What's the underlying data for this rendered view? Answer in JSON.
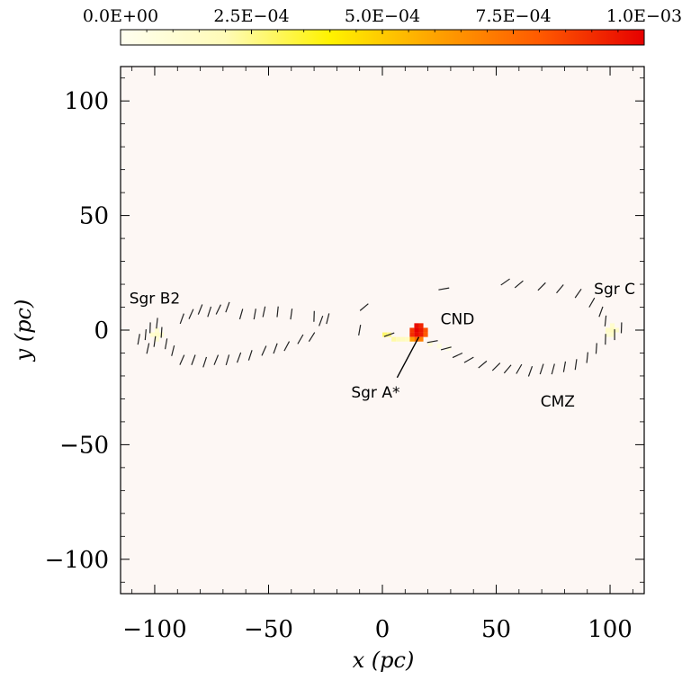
{
  "chart_data": {
    "type": "heatmap",
    "title": "",
    "xlabel": "x (pc)",
    "ylabel": "y (pc)",
    "xlim": [
      -115,
      115
    ],
    "ylim": [
      -115,
      115
    ],
    "x_ticks": [
      -100,
      -50,
      0,
      50,
      100
    ],
    "y_ticks": [
      100,
      50,
      0,
      -50,
      -100
    ],
    "x_tick_labels": [
      "−100",
      "−50",
      "0",
      "50",
      "100"
    ],
    "y_tick_labels": [
      "100",
      "50",
      "0",
      "−50",
      "−100"
    ],
    "grid": false,
    "background_color": "#fdf7f4",
    "colorbar": {
      "orientation": "horizontal",
      "placement": "top",
      "range": [
        0,
        0.001
      ],
      "ticks": [
        0,
        0.00025,
        0.0005,
        0.00075,
        0.001
      ],
      "tick_labels": [
        "0.0E+00",
        "2.5E−04",
        "5.0E−04",
        "7.5E−04",
        "1.0E−03"
      ],
      "colors": [
        "#fffff0",
        "#fffbb8",
        "#fff200",
        "#ffa300",
        "#ff5a00",
        "#e60000"
      ]
    },
    "annotations": [
      {
        "text": "Sgr B2",
        "x": -100,
        "y": 14
      },
      {
        "text": "CND",
        "x": 33,
        "y": 5
      },
      {
        "text": "Sgr C",
        "x": 102,
        "y": 18
      },
      {
        "text": "Sgr A*",
        "x": -3,
        "y": -27,
        "arrow_to": [
          16,
          -3
        ]
      },
      {
        "text": "CMZ",
        "x": 77,
        "y": -31
      }
    ],
    "cells": [
      {
        "x": 15,
        "y": 2,
        "v": 0.00097
      },
      {
        "x": 17,
        "y": 2,
        "v": 0.00092
      },
      {
        "x": 13,
        "y": 0,
        "v": 0.00088
      },
      {
        "x": 15,
        "y": 0,
        "v": 0.001
      },
      {
        "x": 17,
        "y": 0,
        "v": 0.00095
      },
      {
        "x": 19,
        "y": 0,
        "v": 0.00082
      },
      {
        "x": 13,
        "y": -2,
        "v": 0.0009
      },
      {
        "x": 15,
        "y": -2,
        "v": 0.00098
      },
      {
        "x": 17,
        "y": -2,
        "v": 0.00094
      },
      {
        "x": 19,
        "y": -2,
        "v": 0.0008
      },
      {
        "x": 15,
        "y": -4,
        "v": 0.00075
      },
      {
        "x": 17,
        "y": -4,
        "v": 0.0007
      },
      {
        "x": 13,
        "y": -4,
        "v": 0.00062
      },
      {
        "x": 1,
        "y": -2,
        "v": 0.00028
      },
      {
        "x": 3,
        "y": -2,
        "v": 0.00025
      },
      {
        "x": 5,
        "y": -4,
        "v": 0.00022
      },
      {
        "x": 7,
        "y": -4,
        "v": 0.0002
      },
      {
        "x": 9,
        "y": -4,
        "v": 0.00018
      },
      {
        "x": 11,
        "y": -4,
        "v": 0.00016
      },
      {
        "x": 21,
        "y": -6,
        "v": 9e-05
      },
      {
        "x": 25,
        "y": -7,
        "v": 7e-05
      },
      {
        "x": 29,
        "y": -8,
        "v": 5e-05
      },
      {
        "x": -101,
        "y": -2,
        "v": 0.00012
      },
      {
        "x": -99,
        "y": -2,
        "v": 0.00014
      },
      {
        "x": -97,
        "y": -2,
        "v": 0.00011
      },
      {
        "x": -99,
        "y": 0,
        "v": 0.0001
      },
      {
        "x": -99,
        "y": -4,
        "v": 0.0001
      },
      {
        "x": 99,
        "y": 0,
        "v": 0.00014
      },
      {
        "x": 101,
        "y": 0,
        "v": 0.00017
      },
      {
        "x": 103,
        "y": 0,
        "v": 0.00013
      },
      {
        "x": 101,
        "y": 2,
        "v": 0.00012
      },
      {
        "x": 101,
        "y": -2,
        "v": 0.00012
      },
      {
        "x": 99,
        "y": -2,
        "v": 0.0001
      }
    ],
    "polarization_vectors": [
      {
        "x": -107,
        "y": -4,
        "angle": 80
      },
      {
        "x": -104,
        "y": -2,
        "angle": 85
      },
      {
        "x": -102,
        "y": 1,
        "angle": 88
      },
      {
        "x": -100,
        "y": -5,
        "angle": 82
      },
      {
        "x": -97,
        "y": -1,
        "angle": 86
      },
      {
        "x": -95,
        "y": -6,
        "angle": 80
      },
      {
        "x": -103,
        "y": -8,
        "angle": 78
      },
      {
        "x": -99,
        "y": 3,
        "angle": 84
      },
      {
        "x": -92,
        "y": -9,
        "angle": 76
      },
      {
        "x": -88,
        "y": 5,
        "angle": 70
      },
      {
        "x": -84,
        "y": 7,
        "angle": 66
      },
      {
        "x": -80,
        "y": 9,
        "angle": 68
      },
      {
        "x": -76,
        "y": 8,
        "angle": 72
      },
      {
        "x": -72,
        "y": 9,
        "angle": 64
      },
      {
        "x": -68,
        "y": 10,
        "angle": 70
      },
      {
        "x": -62,
        "y": 7,
        "angle": 74
      },
      {
        "x": -56,
        "y": 7,
        "angle": 80
      },
      {
        "x": -52,
        "y": 8,
        "angle": 78
      },
      {
        "x": -46,
        "y": 8,
        "angle": 84
      },
      {
        "x": -40,
        "y": 7,
        "angle": 82
      },
      {
        "x": -30,
        "y": 6,
        "angle": 88
      },
      {
        "x": -27,
        "y": 4,
        "angle": 70
      },
      {
        "x": -24,
        "y": 5,
        "angle": 76
      },
      {
        "x": -88,
        "y": -13,
        "angle": 66
      },
      {
        "x": -83,
        "y": -13,
        "angle": 70
      },
      {
        "x": -78,
        "y": -14,
        "angle": 72
      },
      {
        "x": -73,
        "y": -13,
        "angle": 68
      },
      {
        "x": -68,
        "y": -13,
        "angle": 74
      },
      {
        "x": -63,
        "y": -12,
        "angle": 70
      },
      {
        "x": -58,
        "y": -11,
        "angle": 72
      },
      {
        "x": -52,
        "y": -9,
        "angle": 66
      },
      {
        "x": -47,
        "y": -8,
        "angle": 70
      },
      {
        "x": -42,
        "y": -7,
        "angle": 62
      },
      {
        "x": -36,
        "y": -4,
        "angle": 60
      },
      {
        "x": -31,
        "y": -3,
        "angle": 58
      },
      {
        "x": -8,
        "y": 10,
        "angle": 40
      },
      {
        "x": -10,
        "y": 0,
        "angle": 80
      },
      {
        "x": 3,
        "y": -2,
        "angle": 20
      },
      {
        "x": 22,
        "y": -5,
        "angle": 10
      },
      {
        "x": 28,
        "y": -8,
        "angle": 15
      },
      {
        "x": 33,
        "y": -11,
        "angle": 25
      },
      {
        "x": 38,
        "y": -13,
        "angle": 30
      },
      {
        "x": 44,
        "y": -15,
        "angle": 40
      },
      {
        "x": 50,
        "y": -16,
        "angle": 45
      },
      {
        "x": 55,
        "y": -17,
        "angle": 50
      },
      {
        "x": 60,
        "y": -17,
        "angle": 60
      },
      {
        "x": 65,
        "y": -18,
        "angle": 70
      },
      {
        "x": 70,
        "y": -17,
        "angle": 72
      },
      {
        "x": 75,
        "y": -17,
        "angle": 75
      },
      {
        "x": 80,
        "y": -16,
        "angle": 80
      },
      {
        "x": 85,
        "y": -15,
        "angle": 82
      },
      {
        "x": 90,
        "y": -12,
        "angle": 84
      },
      {
        "x": 94,
        "y": -8,
        "angle": 86
      },
      {
        "x": 98,
        "y": -4,
        "angle": 88
      },
      {
        "x": 102,
        "y": -2,
        "angle": 90
      },
      {
        "x": 105,
        "y": 1,
        "angle": 88
      },
      {
        "x": 98,
        "y": 4,
        "angle": 84
      },
      {
        "x": 96,
        "y": 8,
        "angle": 70
      },
      {
        "x": 92,
        "y": 12,
        "angle": 60
      },
      {
        "x": 86,
        "y": 16,
        "angle": 55
      },
      {
        "x": 78,
        "y": 18,
        "angle": 50
      },
      {
        "x": 70,
        "y": 19,
        "angle": 45
      },
      {
        "x": 60,
        "y": 20,
        "angle": 40
      },
      {
        "x": 54,
        "y": 21,
        "angle": 35
      },
      {
        "x": 27,
        "y": 18,
        "angle": 10
      }
    ]
  }
}
